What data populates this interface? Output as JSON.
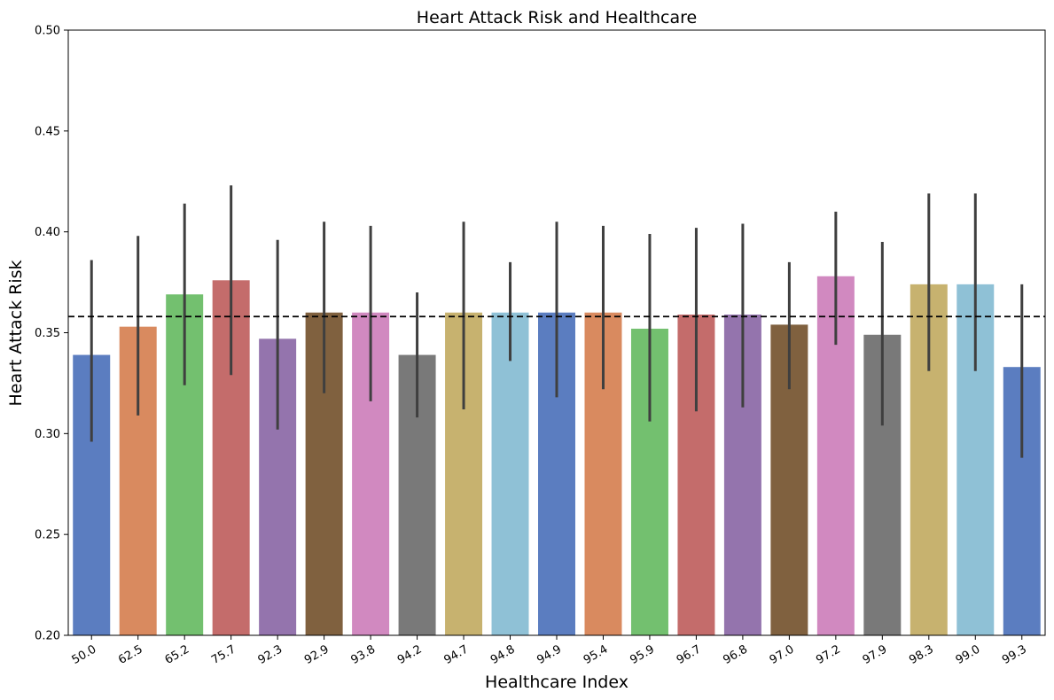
{
  "chart_data": {
    "type": "bar",
    "title": "Heart Attack Risk and Healthcare",
    "xlabel": "Healthcare Index",
    "ylabel": "Heart Attack Risk",
    "categories": [
      "50.0",
      "62.5",
      "65.2",
      "75.7",
      "92.3",
      "92.9",
      "93.8",
      "94.2",
      "94.7",
      "94.8",
      "94.9",
      "95.4",
      "95.9",
      "96.7",
      "96.8",
      "97.0",
      "97.2",
      "97.9",
      "98.3",
      "99.0",
      "99.3"
    ],
    "values": [
      0.339,
      0.353,
      0.369,
      0.376,
      0.347,
      0.36,
      0.36,
      0.339,
      0.36,
      0.36,
      0.36,
      0.36,
      0.352,
      0.359,
      0.359,
      0.354,
      0.378,
      0.349,
      0.374,
      0.374,
      0.333
    ],
    "error_low": [
      0.296,
      0.309,
      0.324,
      0.329,
      0.302,
      0.32,
      0.316,
      0.308,
      0.312,
      0.336,
      0.318,
      0.322,
      0.306,
      0.311,
      0.313,
      0.322,
      0.344,
      0.304,
      0.331,
      0.331,
      0.288
    ],
    "error_high": [
      0.386,
      0.398,
      0.414,
      0.423,
      0.396,
      0.405,
      0.403,
      0.37,
      0.405,
      0.385,
      0.405,
      0.403,
      0.399,
      0.402,
      0.404,
      0.385,
      0.41,
      0.395,
      0.419,
      0.419,
      0.374
    ],
    "reference_line": 0.358,
    "ylim": [
      0.2,
      0.5
    ],
    "yticks": [
      "0.20",
      "0.25",
      "0.30",
      "0.35",
      "0.40",
      "0.45",
      "0.50"
    ],
    "palette": [
      "#5b7dc0",
      "#d98a5f",
      "#73c06f",
      "#c46c6b",
      "#9474ad",
      "#80613f",
      "#d189c0",
      "#797979",
      "#c7b26f",
      "#8fc1d6"
    ],
    "error_color": "#3f3f3f",
    "reference_color": "#000000",
    "grid": false
  }
}
